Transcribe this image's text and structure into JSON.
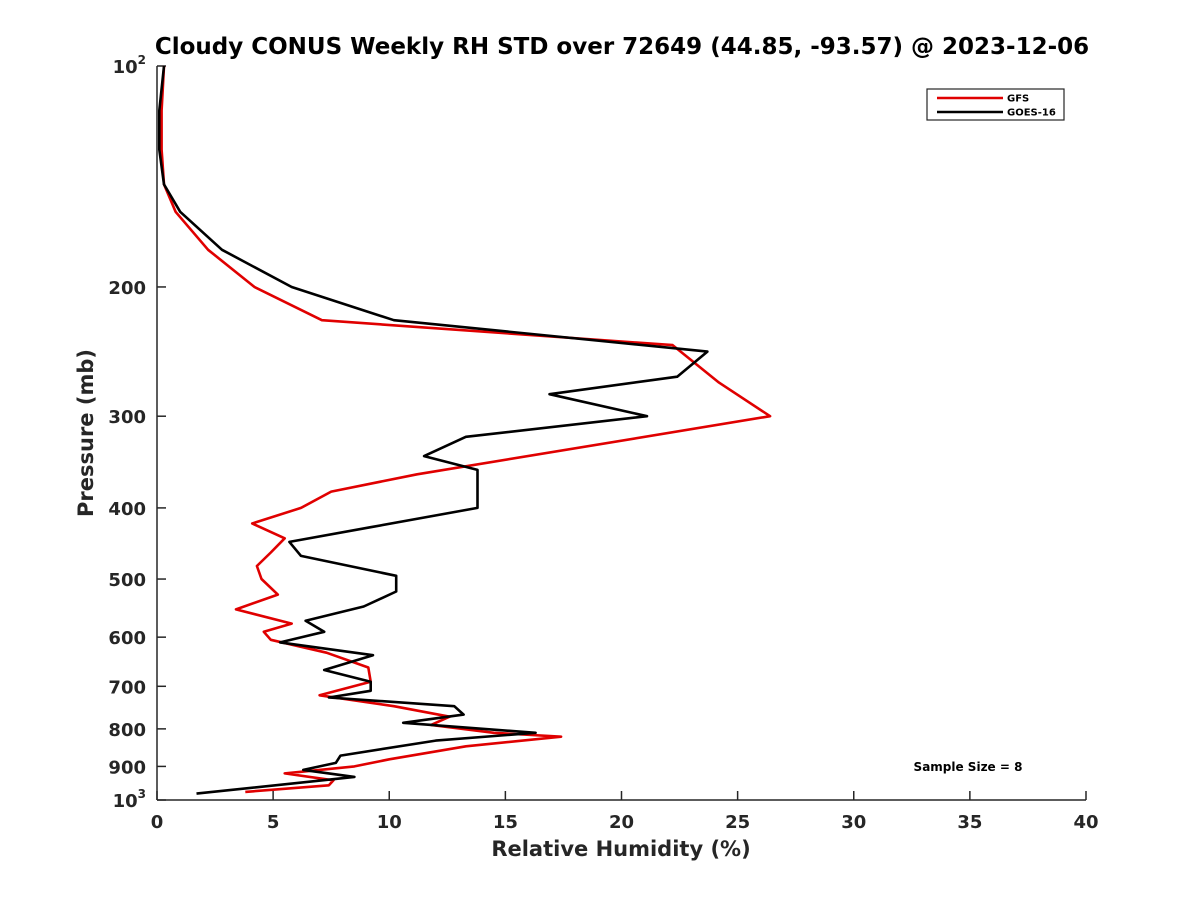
{
  "chart_data": {
    "type": "line",
    "title": "Cloudy CONUS Weekly RH STD over 72649 (44.85, -93.57) @ 2023-12-06",
    "xlabel": "Relative Humidity (%)",
    "ylabel": "Pressure (mb)",
    "xlim": [
      0,
      40
    ],
    "ylim": [
      100,
      1000
    ],
    "y_scale": "log",
    "y_reversed": true,
    "grid": false,
    "legend_position": "top-right",
    "xticks": [
      0,
      5,
      10,
      15,
      20,
      25,
      30,
      35,
      40
    ],
    "yticks": [
      {
        "value": 100,
        "base": "10",
        "exp": "2"
      },
      {
        "value": 200,
        "label": "200"
      },
      {
        "value": 300,
        "label": "300"
      },
      {
        "value": 400,
        "label": "400"
      },
      {
        "value": 500,
        "label": "500"
      },
      {
        "value": 600,
        "label": "600"
      },
      {
        "value": 700,
        "label": "700"
      },
      {
        "value": 800,
        "label": "800"
      },
      {
        "value": 900,
        "label": "900"
      },
      {
        "value": 1000,
        "base": "10",
        "exp": "3"
      }
    ],
    "annotation": "Sample Size = 8",
    "series": [
      {
        "name": "GFS",
        "color": "#e00000",
        "x": [
          0.3,
          0.2,
          0.2,
          0.3,
          0.8,
          2.2,
          4.2,
          7.1,
          22.2,
          24.2,
          26.4,
          11.2,
          7.5,
          6.2,
          4.1,
          5.5,
          4.9,
          4.3,
          4.5,
          5.2,
          3.4,
          5.8,
          4.6,
          4.9,
          7.3,
          9.1,
          9.2,
          7.0,
          10.2,
          12.6,
          11.8,
          14.5,
          17.4,
          13.3,
          10.0,
          8.5,
          5.5,
          7.6,
          7.4,
          3.8
        ],
        "y": [
          100,
          115,
          130,
          145,
          158,
          178,
          200,
          222,
          240,
          270,
          300,
          360,
          380,
          400,
          420,
          440,
          460,
          480,
          500,
          525,
          550,
          575,
          590,
          605,
          630,
          660,
          690,
          720,
          745,
          770,
          790,
          810,
          820,
          845,
          880,
          900,
          920,
          940,
          955,
          975
        ]
      },
      {
        "name": "GOES-16",
        "color": "#000000",
        "x": [
          0.3,
          0.1,
          0.1,
          0.3,
          1.0,
          2.8,
          5.8,
          10.2,
          23.7,
          22.4,
          16.9,
          21.1,
          13.3,
          11.5,
          13.8,
          13.8,
          9.2,
          5.7,
          6.2,
          10.3,
          10.3,
          8.9,
          6.4,
          7.2,
          5.3,
          9.3,
          7.2,
          9.2,
          9.2,
          7.4,
          12.8,
          13.2,
          10.6,
          16.3,
          12.0,
          7.9,
          7.7,
          6.3,
          8.5,
          1.7
        ],
        "y": [
          100,
          115,
          130,
          145,
          158,
          178,
          200,
          222,
          245,
          265,
          280,
          300,
          320,
          340,
          355,
          400,
          425,
          445,
          465,
          495,
          520,
          545,
          570,
          590,
          610,
          635,
          665,
          690,
          710,
          725,
          745,
          765,
          785,
          810,
          830,
          870,
          890,
          910,
          930,
          980
        ]
      }
    ]
  }
}
